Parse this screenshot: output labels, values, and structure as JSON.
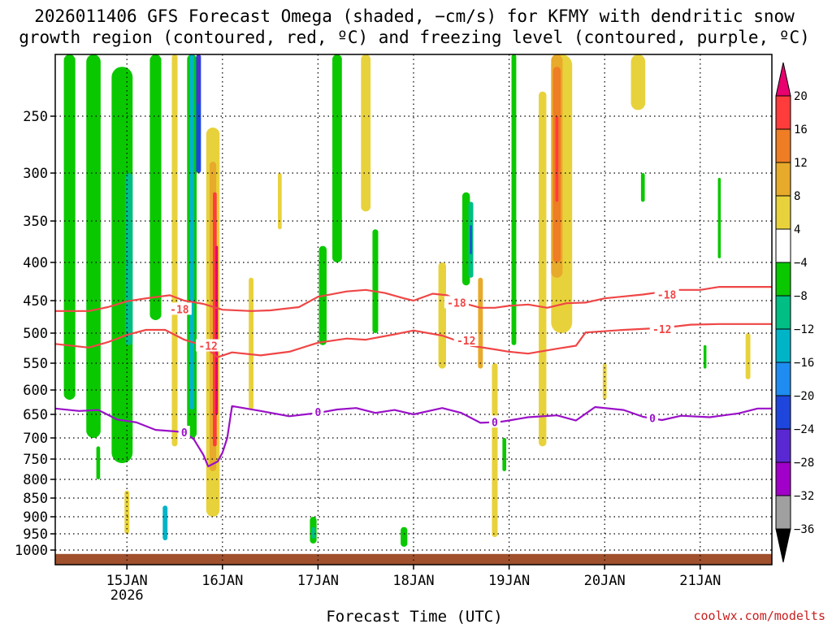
{
  "chart_data": {
    "type": "heatmap",
    "title_line1": "2026011406 GFS Forecast Omega (shaded, −cm/s) for KFMY with dendritic snow",
    "title_line2": "growth region (contoured, red, ºC) and freezing level (contoured, purple, ºC)",
    "xlabel": "Forecast Time (UTC)",
    "credit": "coolwx.com/modelts",
    "x_ticks": [
      {
        "day": 15.0,
        "label": "15JAN",
        "sub": "2026"
      },
      {
        "day": 16.0,
        "label": "16JAN",
        "sub": ""
      },
      {
        "day": 17.0,
        "label": "17JAN",
        "sub": ""
      },
      {
        "day": 18.0,
        "label": "18JAN",
        "sub": ""
      },
      {
        "day": 19.0,
        "label": "19JAN",
        "sub": ""
      },
      {
        "day": 20.0,
        "label": "20JAN",
        "sub": ""
      },
      {
        "day": 21.0,
        "label": "21JAN",
        "sub": ""
      }
    ],
    "x_range_days": [
      14.25,
      21.75
    ],
    "y_ticks": [
      250,
      300,
      350,
      400,
      450,
      500,
      550,
      600,
      650,
      700,
      750,
      800,
      850,
      900,
      950,
      1000
    ],
    "y_range_hPa": [
      200,
      1030
    ],
    "colorbar": {
      "labels": [
        "20",
        "16",
        "12",
        "8",
        "4",
        "−4",
        "−8",
        "−12",
        "−16",
        "−20",
        "−24",
        "−28",
        "−32",
        "−36"
      ],
      "colors": [
        "#e8006e",
        "#ff3c3c",
        "#ee7d24",
        "#e8aa2a",
        "#e8d23c",
        "#ffffff",
        "#0ac800",
        "#00be84",
        "#00b4c8",
        "#1e8cf0",
        "#1e46dc",
        "#5a28d2",
        "#a000c8",
        "#a0a0a0",
        "#000000"
      ]
    },
    "contours": [
      {
        "name": "dgz-top",
        "label": "-18",
        "color": "#f04646",
        "points": [
          [
            14.25,
            466
          ],
          [
            14.6,
            466
          ],
          [
            14.8,
            460
          ],
          [
            15.0,
            451
          ],
          [
            15.2,
            447
          ],
          [
            15.45,
            443
          ],
          [
            15.6,
            450
          ],
          [
            15.8,
            455
          ],
          [
            16.0,
            464
          ],
          [
            16.3,
            466
          ],
          [
            16.5,
            465
          ],
          [
            16.8,
            460
          ],
          [
            17.0,
            445
          ],
          [
            17.3,
            438
          ],
          [
            17.5,
            436
          ],
          [
            17.7,
            440
          ],
          [
            17.9,
            447
          ],
          [
            18.0,
            450
          ],
          [
            18.2,
            441
          ],
          [
            18.35,
            443
          ],
          [
            18.5,
            453
          ],
          [
            18.7,
            461
          ],
          [
            18.85,
            461
          ],
          [
            19.0,
            458
          ],
          [
            19.2,
            456
          ],
          [
            19.4,
            461
          ],
          [
            19.6,
            454
          ],
          [
            19.8,
            453
          ],
          [
            20.0,
            447
          ],
          [
            20.4,
            442
          ],
          [
            20.75,
            436
          ],
          [
            21.0,
            436
          ],
          [
            21.2,
            432
          ],
          [
            21.5,
            432
          ],
          [
            21.75,
            432
          ]
        ]
      },
      {
        "name": "dgz-bottom",
        "label": "-12",
        "color": "#f04646",
        "points": [
          [
            14.25,
            518
          ],
          [
            14.6,
            524
          ],
          [
            14.8,
            515
          ],
          [
            15.0,
            503
          ],
          [
            15.2,
            495
          ],
          [
            15.4,
            495
          ],
          [
            15.6,
            511
          ],
          [
            15.8,
            521
          ],
          [
            15.95,
            540
          ],
          [
            16.1,
            532
          ],
          [
            16.4,
            537
          ],
          [
            16.7,
            531
          ],
          [
            17.0,
            516
          ],
          [
            17.3,
            509
          ],
          [
            17.5,
            511
          ],
          [
            17.8,
            502
          ],
          [
            18.0,
            496
          ],
          [
            18.3,
            504
          ],
          [
            18.6,
            521
          ],
          [
            18.85,
            527
          ],
          [
            19.0,
            531
          ],
          [
            19.2,
            534
          ],
          [
            19.5,
            526
          ],
          [
            19.7,
            521
          ],
          [
            19.8,
            499
          ],
          [
            20.2,
            495
          ],
          [
            20.6,
            492
          ],
          [
            20.9,
            487
          ],
          [
            21.2,
            486
          ],
          [
            21.5,
            486
          ],
          [
            21.75,
            486
          ]
        ]
      },
      {
        "name": "freezing-level",
        "label": "0",
        "color": "#9a10c8",
        "points": [
          [
            14.25,
            638
          ],
          [
            14.5,
            643
          ],
          [
            14.7,
            641
          ],
          [
            14.9,
            661
          ],
          [
            15.1,
            667
          ],
          [
            15.3,
            683
          ],
          [
            15.5,
            686
          ],
          [
            15.6,
            688
          ],
          [
            15.7,
            703
          ],
          [
            15.8,
            740
          ],
          [
            15.85,
            768
          ],
          [
            15.95,
            756
          ],
          [
            16.0,
            735
          ],
          [
            16.05,
            700
          ],
          [
            16.1,
            633
          ],
          [
            16.4,
            643
          ],
          [
            16.7,
            654
          ],
          [
            17.0,
            647
          ],
          [
            17.2,
            640
          ],
          [
            17.4,
            637
          ],
          [
            17.6,
            647
          ],
          [
            17.8,
            641
          ],
          [
            18.0,
            650
          ],
          [
            18.3,
            637
          ],
          [
            18.5,
            647
          ],
          [
            18.7,
            668
          ],
          [
            18.9,
            666
          ],
          [
            19.0,
            663
          ],
          [
            19.2,
            656
          ],
          [
            19.5,
            652
          ],
          [
            19.7,
            663
          ],
          [
            19.9,
            635
          ],
          [
            20.2,
            641
          ],
          [
            20.4,
            655
          ],
          [
            20.6,
            662
          ],
          [
            20.8,
            653
          ],
          [
            21.1,
            656
          ],
          [
            21.4,
            648
          ],
          [
            21.6,
            638
          ],
          [
            21.75,
            638
          ]
        ]
      }
    ],
    "contour_labels": [
      {
        "contour": "dgz-top",
        "day": 15.55,
        "hPa": 463,
        "text": "-18"
      },
      {
        "contour": "dgz-top",
        "day": 18.45,
        "hPa": 453,
        "text": "-18"
      },
      {
        "contour": "dgz-top",
        "day": 20.65,
        "hPa": 442,
        "text": "-18"
      },
      {
        "contour": "dgz-bottom",
        "day": 15.85,
        "hPa": 521,
        "text": "-12"
      },
      {
        "contour": "dgz-bottom",
        "day": 18.55,
        "hPa": 512,
        "text": "-12"
      },
      {
        "contour": "dgz-bottom",
        "day": 20.6,
        "hPa": 494,
        "text": "-12"
      },
      {
        "contour": "freezing-level",
        "day": 15.6,
        "hPa": 688,
        "text": "0"
      },
      {
        "contour": "freezing-level",
        "day": 17.0,
        "hPa": 645,
        "text": "0"
      },
      {
        "contour": "freezing-level",
        "day": 18.85,
        "hPa": 666,
        "text": "0"
      },
      {
        "contour": "freezing-level",
        "day": 20.5,
        "hPa": 658,
        "text": "0"
      }
    ],
    "omega_features": [
      {
        "name": "green-band-1",
        "day": 14.4,
        "hPa_top": 200,
        "hPa_bot": 620,
        "w": 0.12,
        "color": "#0ac800"
      },
      {
        "name": "green-band-2",
        "day": 14.65,
        "hPa_top": 200,
        "hPa_bot": 700,
        "w": 0.15,
        "color": "#0ac800"
      },
      {
        "name": "green-band-3",
        "day": 14.95,
        "hPa_top": 210,
        "hPa_bot": 760,
        "w": 0.22,
        "color": "#0ac800"
      },
      {
        "name": "teal-core-1",
        "day": 15.02,
        "hPa_top": 300,
        "hPa_bot": 520,
        "w": 0.08,
        "color": "#00be84"
      },
      {
        "name": "green-band-4",
        "day": 15.3,
        "hPa_top": 200,
        "hPa_bot": 480,
        "w": 0.12,
        "color": "#0ac800"
      },
      {
        "name": "yellow-band-1",
        "day": 15.5,
        "hPa_top": 200,
        "hPa_bot": 720,
        "w": 0.06,
        "color": "#e8d23c"
      },
      {
        "name": "green-band-5",
        "day": 15.68,
        "hPa_top": 200,
        "hPa_bot": 700,
        "w": 0.1,
        "color": "#0ac800"
      },
      {
        "name": "cyan-band-1",
        "day": 15.68,
        "hPa_top": 200,
        "hPa_bot": 640,
        "w": 0.05,
        "color": "#00b4c8"
      },
      {
        "name": "blue-core-1",
        "day": 15.75,
        "hPa_top": 200,
        "hPa_bot": 300,
        "w": 0.05,
        "color": "#1e46dc"
      },
      {
        "name": "purple-core-1",
        "day": 15.75,
        "hPa_top": 200,
        "hPa_bot": 240,
        "w": 0.03,
        "color": "#5a28d2"
      },
      {
        "name": "yellow-band-2",
        "day": 15.9,
        "hPa_top": 260,
        "hPa_bot": 900,
        "w": 0.14,
        "color": "#e8d23c"
      },
      {
        "name": "orange-band-1",
        "day": 15.9,
        "hPa_top": 290,
        "hPa_bot": 780,
        "w": 0.07,
        "color": "#e8aa2a"
      },
      {
        "name": "red-band-1",
        "day": 15.92,
        "hPa_top": 320,
        "hPa_bot": 720,
        "w": 0.04,
        "color": "#ff3c3c"
      },
      {
        "name": "magenta-core-1",
        "day": 15.94,
        "hPa_top": 380,
        "hPa_bot": 650,
        "w": 0.025,
        "color": "#e8006e"
      },
      {
        "name": "yellow-band-3",
        "day": 16.3,
        "hPa_top": 420,
        "hPa_bot": 640,
        "w": 0.05,
        "color": "#e8d23c"
      },
      {
        "name": "yellow-band-4",
        "day": 16.6,
        "hPa_top": 300,
        "hPa_bot": 360,
        "w": 0.04,
        "color": "#e8d23c"
      },
      {
        "name": "green-band-6",
        "day": 17.05,
        "hPa_top": 380,
        "hPa_bot": 520,
        "w": 0.08,
        "color": "#0ac800"
      },
      {
        "name": "green-band-7",
        "day": 17.2,
        "hPa_top": 200,
        "hPa_bot": 400,
        "w": 0.1,
        "color": "#0ac800"
      },
      {
        "name": "yellow-band-5",
        "day": 17.5,
        "hPa_top": 200,
        "hPa_bot": 340,
        "w": 0.1,
        "color": "#e8d23c"
      },
      {
        "name": "green-band-8",
        "day": 17.6,
        "hPa_top": 360,
        "hPa_bot": 500,
        "w": 0.06,
        "color": "#0ac800"
      },
      {
        "name": "yellow-band-6",
        "day": 18.3,
        "hPa_top": 400,
        "hPa_bot": 560,
        "w": 0.08,
        "color": "#e8d23c"
      },
      {
        "name": "green-band-9",
        "day": 18.55,
        "hPa_top": 320,
        "hPa_bot": 430,
        "w": 0.08,
        "color": "#0ac800"
      },
      {
        "name": "teal-core-2",
        "day": 18.6,
        "hPa_top": 330,
        "hPa_bot": 420,
        "w": 0.05,
        "color": "#00be84"
      },
      {
        "name": "blue-core-2",
        "day": 18.6,
        "hPa_top": 355,
        "hPa_bot": 390,
        "w": 0.02,
        "color": "#1e46dc"
      },
      {
        "name": "orange-band-2",
        "day": 18.7,
        "hPa_top": 420,
        "hPa_bot": 560,
        "w": 0.05,
        "color": "#e8aa2a"
      },
      {
        "name": "yellow-band-7",
        "day": 18.85,
        "hPa_top": 550,
        "hPa_bot": 960,
        "w": 0.06,
        "color": "#e8d23c"
      },
      {
        "name": "green-band-10",
        "day": 19.05,
        "hPa_top": 200,
        "hPa_bot": 520,
        "w": 0.05,
        "color": "#0ac800"
      },
      {
        "name": "yellow-band-8",
        "day": 19.35,
        "hPa_top": 230,
        "hPa_bot": 720,
        "w": 0.08,
        "color": "#e8d23c"
      },
      {
        "name": "yellow-band-9",
        "day": 19.55,
        "hPa_top": 200,
        "hPa_bot": 500,
        "w": 0.22,
        "color": "#e8d23c"
      },
      {
        "name": "orange-band-3",
        "day": 19.5,
        "hPa_top": 200,
        "hPa_bot": 420,
        "w": 0.12,
        "color": "#e8aa2a"
      },
      {
        "name": "orange-core-3",
        "day": 19.5,
        "hPa_top": 210,
        "hPa_bot": 400,
        "w": 0.08,
        "color": "#ee7d24"
      },
      {
        "name": "red-core-3",
        "day": 19.5,
        "hPa_top": 250,
        "hPa_bot": 330,
        "w": 0.03,
        "color": "#ff3c3c"
      },
      {
        "name": "yellow-band-10",
        "day": 20.35,
        "hPa_top": 200,
        "hPa_bot": 245,
        "w": 0.15,
        "color": "#e8d23c"
      },
      {
        "name": "green-band-11",
        "day": 20.4,
        "hPa_top": 300,
        "hPa_bot": 330,
        "w": 0.04,
        "color": "#0ac800"
      },
      {
        "name": "green-band-12",
        "day": 21.2,
        "hPa_top": 305,
        "hPa_bot": 395,
        "w": 0.03,
        "color": "#0ac800"
      },
      {
        "name": "green-band-13",
        "day": 21.05,
        "hPa_top": 520,
        "hPa_bot": 560,
        "w": 0.03,
        "color": "#0ac800"
      },
      {
        "name": "yellow-band-11",
        "day": 21.5,
        "hPa_top": 500,
        "hPa_bot": 580,
        "w": 0.05,
        "color": "#e8d23c"
      },
      {
        "name": "green-blob-1",
        "day": 16.95,
        "hPa_top": 900,
        "hPa_bot": 980,
        "w": 0.07,
        "color": "#0ac800"
      },
      {
        "name": "teal-blob-1",
        "day": 16.95,
        "hPa_top": 930,
        "hPa_bot": 965,
        "w": 0.04,
        "color": "#00be84"
      },
      {
        "name": "green-blob-2",
        "day": 17.9,
        "hPa_top": 930,
        "hPa_bot": 990,
        "w": 0.07,
        "color": "#0ac800"
      },
      {
        "name": "cyan-blob-1",
        "day": 15.4,
        "hPa_top": 870,
        "hPa_bot": 970,
        "w": 0.05,
        "color": "#00b4c8"
      },
      {
        "name": "yellow-blob-1",
        "day": 15.0,
        "hPa_top": 830,
        "hPa_bot": 950,
        "w": 0.05,
        "color": "#e8d23c"
      },
      {
        "name": "green-blob-3",
        "day": 14.7,
        "hPa_top": 720,
        "hPa_bot": 800,
        "w": 0.04,
        "color": "#0ac800"
      },
      {
        "name": "yellow-blob-2",
        "day": 20.0,
        "hPa_top": 550,
        "hPa_bot": 620,
        "w": 0.04,
        "color": "#e8d23c"
      },
      {
        "name": "green-blob-4",
        "day": 18.95,
        "hPa_top": 700,
        "hPa_bot": 780,
        "w": 0.04,
        "color": "#0ac800"
      }
    ],
    "surface_color": "#a0502d",
    "surface_hPa": [
      1008,
      1030
    ]
  }
}
